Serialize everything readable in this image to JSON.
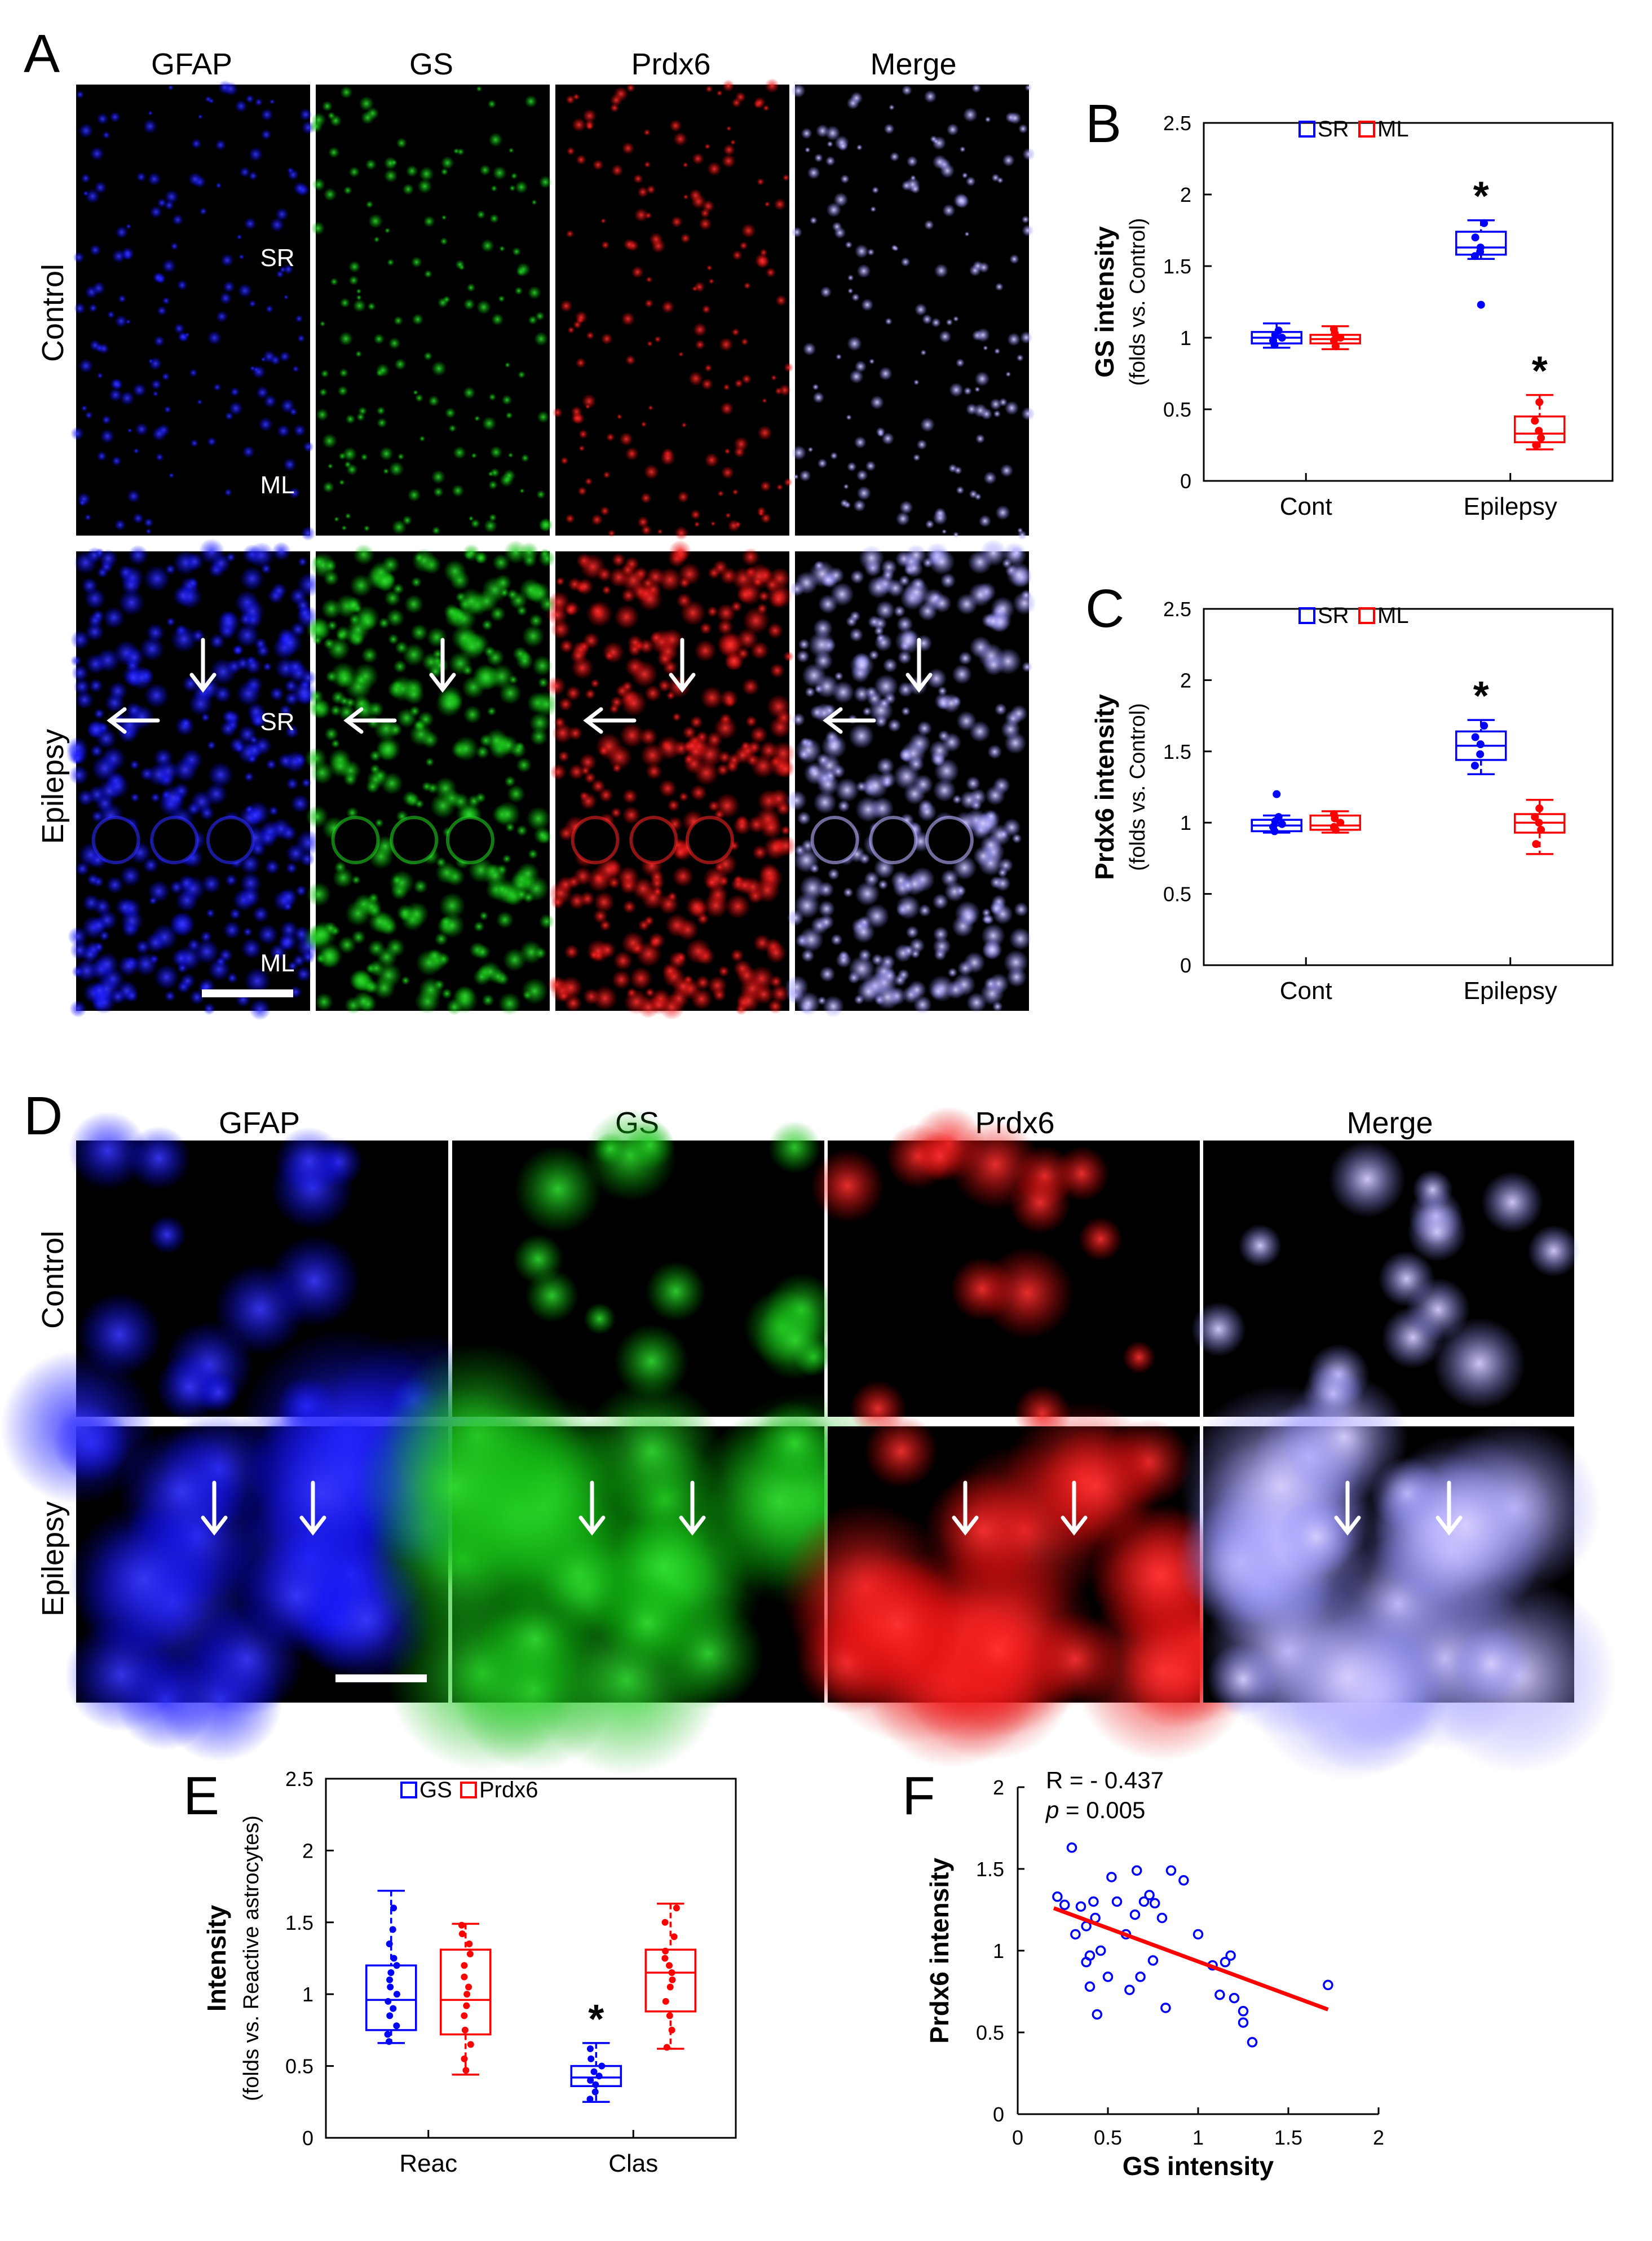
{
  "panel_letters": {
    "A": "A",
    "B": "B",
    "C": "C",
    "D": "D",
    "E": "E",
    "F": "F"
  },
  "panel_a": {
    "columns": [
      "GFAP",
      "GS",
      "Prdx6",
      "Merge"
    ],
    "rows": [
      "Control",
      "Epilepsy"
    ],
    "region_labels": {
      "sr": "SR",
      "ml": "ML"
    },
    "channel_colors": [
      "#2b2bff",
      "#22cc22",
      "#ee2222",
      "#b8b0ff"
    ]
  },
  "panel_d": {
    "columns": [
      "GFAP",
      "GS",
      "Prdx6",
      "Merge"
    ],
    "rows": [
      "Control",
      "Epilepsy"
    ]
  },
  "chart_data": [
    {
      "id": "B",
      "type": "box",
      "ylabel": "GS intensity",
      "ylabel2": "(folds vs. Control)",
      "ylim": [
        0,
        2.5
      ],
      "yticks": [
        "0",
        "0.5",
        "1",
        "1.5",
        "2",
        "2.5"
      ],
      "categories": [
        "Cont",
        "Epilepsy"
      ],
      "series": [
        {
          "name": "SR",
          "color": "#0000ff",
          "boxes": [
            {
              "min": 0.93,
              "q1": 0.96,
              "median": 1.0,
              "q3": 1.04,
              "max": 1.1,
              "points": [
                0.95,
                0.98,
                1.0,
                1.02,
                1.05
              ],
              "outliers": []
            },
            {
              "min": 1.55,
              "q1": 1.58,
              "median": 1.63,
              "q3": 1.74,
              "max": 1.82,
              "points": [
                1.57,
                1.6,
                1.63,
                1.7,
                1.8
              ],
              "outliers": [
                1.23
              ]
            }
          ]
        },
        {
          "name": "ML",
          "color": "#ff0000",
          "boxes": [
            {
              "min": 0.92,
              "q1": 0.96,
              "median": 0.99,
              "q3": 1.02,
              "max": 1.08,
              "points": [
                0.94,
                0.98,
                1.0,
                1.03,
                1.06
              ],
              "outliers": []
            },
            {
              "min": 0.22,
              "q1": 0.27,
              "median": 0.33,
              "q3": 0.45,
              "max": 0.6,
              "points": [
                0.25,
                0.3,
                0.35,
                0.42,
                0.55
              ],
              "outliers": []
            }
          ]
        }
      ],
      "significance": [
        {
          "series": "SR",
          "category": "Epilepsy",
          "label": "*"
        },
        {
          "series": "ML",
          "category": "Epilepsy",
          "label": "*"
        }
      ],
      "legend_position": "top"
    },
    {
      "id": "C",
      "type": "box",
      "ylabel": "Prdx6 intensity",
      "ylabel2": "(folds vs. Control)",
      "ylim": [
        0,
        2.5
      ],
      "yticks": [
        "0",
        "0.5",
        "1",
        "1.5",
        "2",
        "2.5"
      ],
      "categories": [
        "Cont",
        "Epilepsy"
      ],
      "series": [
        {
          "name": "SR",
          "color": "#0000ff",
          "boxes": [
            {
              "min": 0.93,
              "q1": 0.94,
              "median": 0.98,
              "q3": 1.02,
              "max": 1.05,
              "points": [
                0.94,
                0.97,
                0.99,
                1.01,
                1.04
              ],
              "outliers": [
                1.2
              ]
            },
            {
              "min": 1.34,
              "q1": 1.44,
              "median": 1.54,
              "q3": 1.64,
              "max": 1.72,
              "points": [
                1.4,
                1.48,
                1.55,
                1.6,
                1.68
              ],
              "outliers": []
            }
          ]
        },
        {
          "name": "ML",
          "color": "#ff0000",
          "boxes": [
            {
              "min": 0.93,
              "q1": 0.95,
              "median": 0.98,
              "q3": 1.05,
              "max": 1.08,
              "points": [
                0.95,
                0.97,
                1.0,
                1.03,
                1.06
              ],
              "outliers": []
            },
            {
              "min": 0.78,
              "q1": 0.93,
              "median": 1.0,
              "q3": 1.06,
              "max": 1.16,
              "points": [
                0.85,
                0.95,
                1.0,
                1.04,
                1.1
              ],
              "outliers": []
            }
          ]
        }
      ],
      "significance": [
        {
          "series": "SR",
          "category": "Epilepsy",
          "label": "*"
        }
      ],
      "legend_position": "top"
    },
    {
      "id": "E",
      "type": "box",
      "ylabel": "Intensity",
      "ylabel2": "(folds vs. Reactive astrocytes)",
      "ylim": [
        0,
        2.5
      ],
      "yticks": [
        "0",
        "0.5",
        "1",
        "1.5",
        "2",
        "2.5"
      ],
      "categories": [
        "Reac",
        "Clas"
      ],
      "series": [
        {
          "name": "GS",
          "color": "#0000ff",
          "boxes": [
            {
              "min": 0.66,
              "q1": 0.75,
              "median": 0.96,
              "q3": 1.2,
              "max": 1.72,
              "points": [
                0.67,
                0.72,
                0.78,
                0.85,
                0.9,
                0.95,
                1.0,
                1.05,
                1.1,
                1.15,
                1.2,
                1.25,
                1.35,
                1.45,
                1.6
              ],
              "outliers": []
            },
            {
              "min": 0.25,
              "q1": 0.36,
              "median": 0.42,
              "q3": 0.5,
              "max": 0.66,
              "points": [
                0.27,
                0.32,
                0.37,
                0.4,
                0.43,
                0.46,
                0.5,
                0.55,
                0.62
              ],
              "outliers": []
            }
          ]
        },
        {
          "name": "Prdx6",
          "color": "#ff0000",
          "boxes": [
            {
              "min": 0.44,
              "q1": 0.72,
              "median": 0.96,
              "q3": 1.31,
              "max": 1.49,
              "points": [
                0.47,
                0.55,
                0.65,
                0.75,
                0.85,
                0.92,
                1.0,
                1.05,
                1.12,
                1.2,
                1.28,
                1.35,
                1.42,
                1.48
              ],
              "outliers": []
            },
            {
              "min": 0.62,
              "q1": 0.88,
              "median": 1.15,
              "q3": 1.31,
              "max": 1.63,
              "points": [
                0.63,
                0.75,
                0.85,
                0.95,
                1.05,
                1.1,
                1.15,
                1.2,
                1.25,
                1.3,
                1.4,
                1.5,
                1.6
              ],
              "outliers": []
            }
          ]
        }
      ],
      "significance": [
        {
          "series": "GS",
          "category": "Clas",
          "label": "*"
        }
      ],
      "legend_position": "top"
    },
    {
      "id": "F",
      "type": "scatter",
      "xlabel": "GS intensity",
      "ylabel": "Prdx6 intensity",
      "xlim": [
        0,
        2
      ],
      "ylim": [
        0,
        2
      ],
      "xticks": [
        "0",
        "0.5",
        "1",
        "1.5",
        "2"
      ],
      "yticks": [
        "0",
        "0.5",
        "1",
        "1.5",
        "2"
      ],
      "annotation_r": "R = - 0.437",
      "annotation_p_label": "p",
      "annotation_p_value": " = 0.005",
      "points": [
        [
          0.22,
          1.33
        ],
        [
          0.26,
          1.28
        ],
        [
          0.3,
          1.63
        ],
        [
          0.32,
          1.1
        ],
        [
          0.35,
          1.27
        ],
        [
          0.38,
          1.15
        ],
        [
          0.38,
          0.93
        ],
        [
          0.4,
          0.78
        ],
        [
          0.4,
          0.97
        ],
        [
          0.42,
          1.3
        ],
        [
          0.43,
          1.2
        ],
        [
          0.44,
          0.61
        ],
        [
          0.46,
          1.0
        ],
        [
          0.5,
          0.84
        ],
        [
          0.52,
          1.45
        ],
        [
          0.55,
          1.3
        ],
        [
          0.6,
          1.1
        ],
        [
          0.62,
          0.76
        ],
        [
          0.65,
          1.22
        ],
        [
          0.66,
          1.49
        ],
        [
          0.68,
          0.84
        ],
        [
          0.7,
          1.3
        ],
        [
          0.73,
          1.34
        ],
        [
          0.75,
          0.94
        ],
        [
          0.76,
          1.29
        ],
        [
          0.8,
          1.2
        ],
        [
          0.82,
          0.65
        ],
        [
          0.85,
          1.49
        ],
        [
          0.92,
          1.43
        ],
        [
          1.0,
          1.1
        ],
        [
          1.08,
          0.91
        ],
        [
          1.12,
          0.73
        ],
        [
          1.15,
          0.93
        ],
        [
          1.18,
          0.97
        ],
        [
          1.2,
          0.71
        ],
        [
          1.25,
          0.56
        ],
        [
          1.25,
          0.63
        ],
        [
          1.3,
          0.44
        ],
        [
          1.72,
          0.79
        ]
      ],
      "fit_line": [
        [
          0.2,
          1.26
        ],
        [
          1.72,
          0.64
        ]
      ],
      "marker_color": "#0000ff",
      "line_color": "#ff0000"
    }
  ]
}
